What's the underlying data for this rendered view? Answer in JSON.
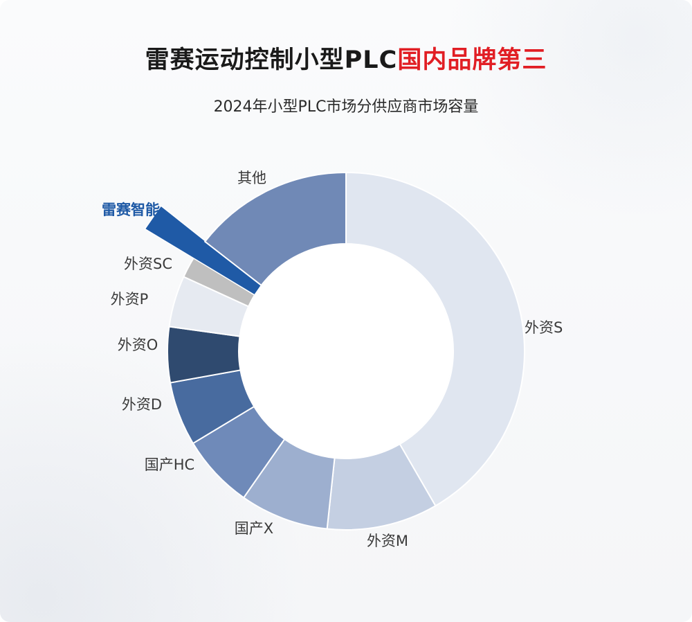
{
  "title": {
    "part1": "雷赛运动控制小型PLC",
    "part2": "国内品牌第三"
  },
  "subtitle": "2024年小型PLC市场分供应商市场容量",
  "highlight_label": "雷赛智能",
  "colors": {
    "title_red": "#e11e24",
    "brand_blue": "#1f5aa6"
  },
  "chart_data": {
    "type": "pie",
    "subtype": "donut",
    "title": "2024年小型PLC市场分供应商市场容量",
    "start_angle_deg": 0,
    "direction": "clockwise",
    "slices": [
      {
        "label": "外资S",
        "value": 43.1,
        "color": "#e0e6f0"
      },
      {
        "label": "外资M",
        "value": 10.4,
        "color": "#c4cfe2"
      },
      {
        "label": "国产X",
        "value": 8.3,
        "color": "#9dafcf"
      },
      {
        "label": "国产HC",
        "value": 6.9,
        "color": "#6f8ab9"
      },
      {
        "label": "外资D",
        "value": 6.0,
        "color": "#486b9f"
      },
      {
        "label": "外资O",
        "value": 5.2,
        "color": "#2f4a6f"
      },
      {
        "label": "外资P",
        "value": 4.8,
        "color": "#e6eaf1"
      },
      {
        "label": "外资SC",
        "value": 2.0,
        "color": "#bfbfbf"
      },
      {
        "label": "雷赛智能",
        "value": 1.8,
        "color": "#1f5aa6",
        "highlight": true
      },
      {
        "label": "其他",
        "value": 15.0,
        "color": "#7089b6"
      }
    ]
  }
}
